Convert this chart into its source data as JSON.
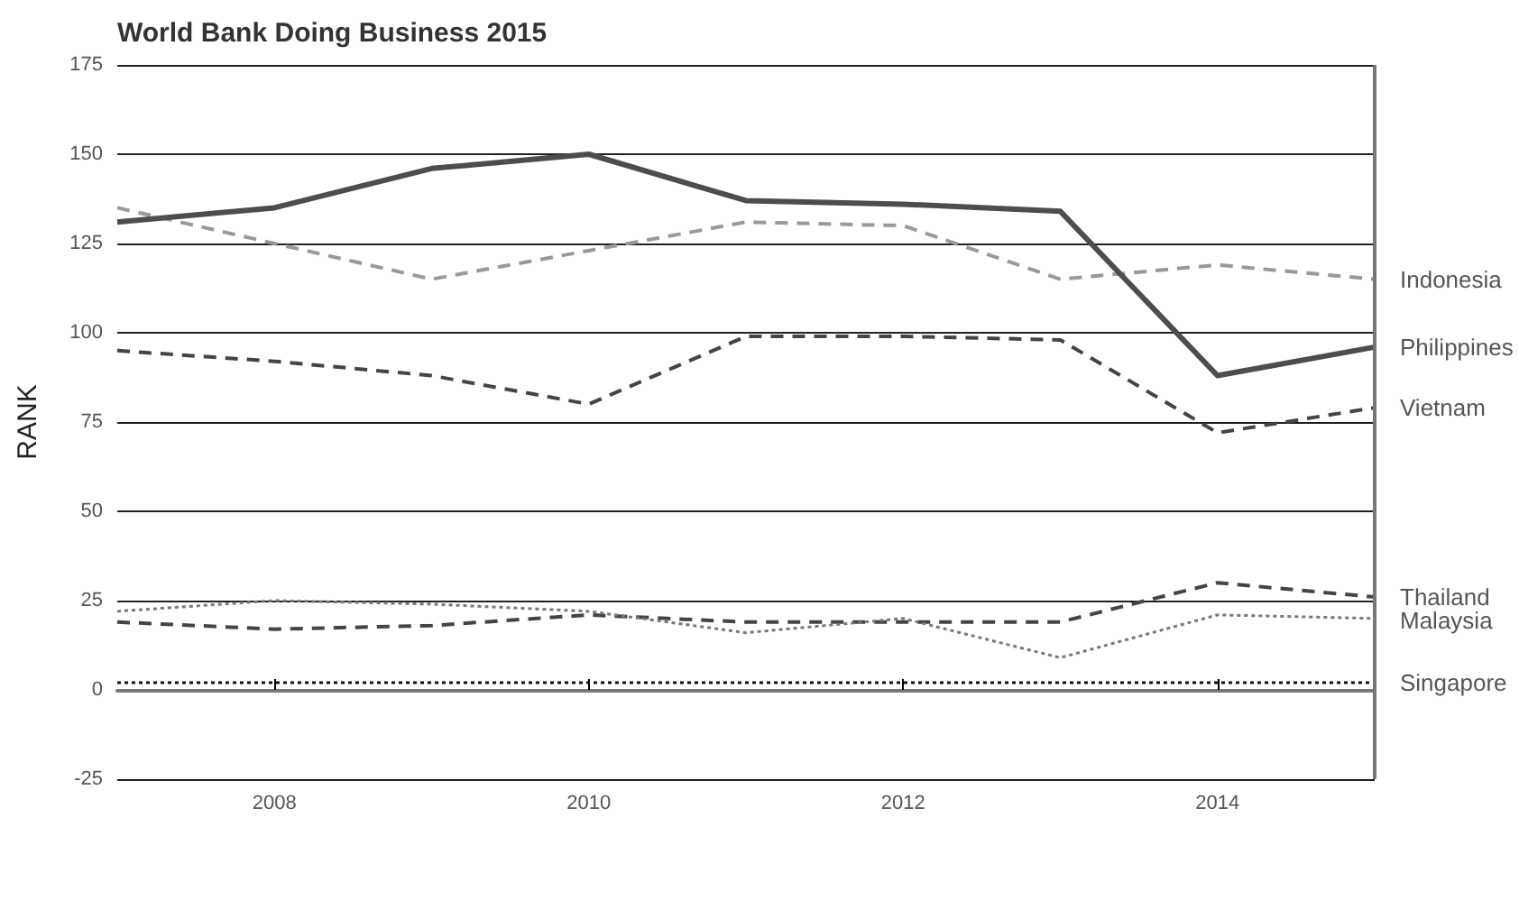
{
  "chart_data": {
    "type": "line",
    "title": "World Bank Doing Business 2015",
    "ylabel": "RANK",
    "x": [
      2007,
      2008,
      2009,
      2010,
      2011,
      2012,
      2013,
      2014,
      2015
    ],
    "xlim": [
      2007,
      2015
    ],
    "xticks": [
      2008,
      2010,
      2012,
      2014
    ],
    "ylim": [
      -25,
      175
    ],
    "yticks": [
      -25,
      0,
      25,
      50,
      75,
      100,
      125,
      150,
      175
    ],
    "grid": "y",
    "legend": false,
    "marker": "none",
    "series": [
      {
        "name": "Indonesia",
        "color": "#999999",
        "line_style": "dashed",
        "values": [
          135,
          125,
          115,
          123,
          131,
          130,
          115,
          119,
          115
        ]
      },
      {
        "name": "Philippines",
        "color": "#4d4d4d",
        "line_style": "solid",
        "values": [
          131,
          135,
          146,
          150,
          137,
          136,
          134,
          88,
          96
        ]
      },
      {
        "name": "Vietnam",
        "color": "#444444",
        "line_style": "dashed",
        "values": [
          95,
          92,
          88,
          80,
          99,
          99,
          98,
          72,
          79
        ]
      },
      {
        "name": "Thailand",
        "color": "#444444",
        "line_style": "dashed",
        "values": [
          19,
          17,
          18,
          21,
          19,
          19,
          19,
          30,
          26
        ]
      },
      {
        "name": "Malaysia",
        "color": "#777777",
        "line_style": "dotted",
        "values": [
          22,
          25,
          24,
          22,
          16,
          20,
          9,
          21,
          20
        ]
      },
      {
        "name": "Singapore",
        "color": "#111111",
        "line_style": "dotted",
        "values": [
          2,
          2,
          2,
          2,
          2,
          2,
          2,
          2,
          2
        ]
      }
    ]
  }
}
